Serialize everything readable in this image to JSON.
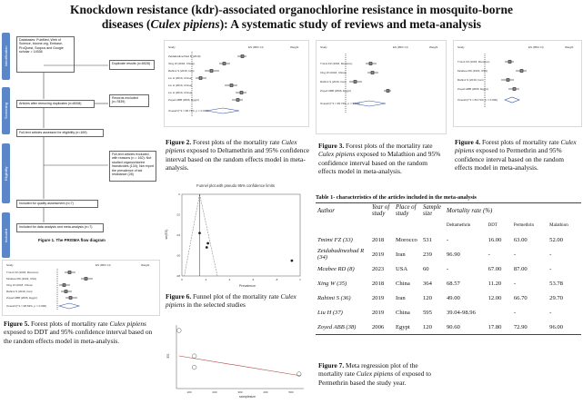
{
  "title_line1": "Knockdown resistance (kdr)-associated organochlorine resistance in mosquito-borne",
  "title_line2_pre": "diseases (",
  "title_line2_species": "Culex pipiens",
  "title_line2_post": "): A systematic study of reviews and meta-analysis",
  "prisma": {
    "phases": [
      "Identification",
      "Screening",
      "Eligibility",
      "Included"
    ],
    "boxes": {
      "databases": "Databases: PubMed, Web of Science, bioone.org, Embase, ProQuest, Scopus and Google scholar = 14536",
      "duplicates": "Duplicate results (n=6528)",
      "after_dup": "Articles after removing duplicates (n=8008)",
      "records_excluded": "Records excluded (n=7839)",
      "fulltext": "Full-text articles assessed for eligibility (n=169)",
      "fulltext_excluded": "Full-text articles excluded, with reasons (n = 162): Not studied organochlorine insecticides (134); Not report the prevalence of kdr resistance (28)",
      "quality": "Included for quality assessment (n=7)",
      "meta": "Included for data analysis and meta-analysis (n=7)"
    },
    "caption": "Figure 1. The PRISMA flow diagram"
  },
  "fig2_caption": {
    "label": "Figure 2.",
    "text_a": " Forest plots of the mortality rate ",
    "species": "Culex pipiens",
    "text_b": " exposed to Deltamethrin and 95% confidence interval based on the random effects model in meta-analysis."
  },
  "fig3_caption": {
    "label": "Figure 3.",
    "text_a": " Forest plots of the mortality rate ",
    "species": "Culex pipiens",
    "text_b": " exposed to Malathion and 95% confidence interval based on the random effects model in meta-analysis."
  },
  "fig4_caption": {
    "label": "Figure 4.",
    "text_a": " Forest plots of mortality rate ",
    "species": "Culex pipiens",
    "text_b": " exposed to Permethrin and 95% confidence interval based on the random effects model in meta-analysis."
  },
  "fig5_caption": {
    "label": "Figure 5.",
    "text_a": " Forest plots of mortality rate ",
    "species": "Culex pipiens",
    "text_b": " exposed to DDT and 95% confidence interval based on the random effects model in meta-analysis."
  },
  "fig6_caption": {
    "label": "Figure 6.",
    "text_a": " Funnel plot of the mortality rate ",
    "species": "Culex pipiens",
    "text_b": " in the selected studies"
  },
  "fig7_caption": {
    "label": "Figure 7.",
    "text_a": " Meta regression plot of the mortality rate ",
    "species": "Culex pipiens",
    "text_b": " of exposed to Permethrin based the study year."
  },
  "funnel": {
    "title": "Funnel plot with pseudo 95% confidence limits",
    "xlabel": "Prevalence",
    "ylabel": "se(ES)"
  },
  "metareg": {
    "xlabel": "samplesize",
    "ylabel": "ES"
  },
  "table1": {
    "title": "Table 1- characteristics of the articles included in the meta-analysis",
    "headers": {
      "author": "Author",
      "year": "Year of study",
      "place": "Place of study",
      "sample": "Sample size",
      "mortality": "Mortality rate (%)"
    },
    "subheaders": [
      "Deltamethrin",
      "DDT",
      "Permethrin",
      "Malathion"
    ],
    "rows": [
      {
        "author": "Tmimi FZ (33)",
        "year": "2018",
        "place": "Morocco",
        "sample": "531",
        "delta": "-",
        "ddt": "16.00",
        "perm": "63.00",
        "mala": "52.00"
      },
      {
        "author": "Zeidabadinezhad R (34)",
        "year": "2019",
        "place": "Iran",
        "sample": "239",
        "delta": "96.90",
        "ddt": "-",
        "perm": "-",
        "mala": "-"
      },
      {
        "author": "Mcabee RD (8)",
        "year": "2023",
        "place": "USA",
        "sample": "60",
        "delta": "-",
        "ddt": "67.00",
        "perm": "87.00",
        "mala": "-"
      },
      {
        "author": "Xing W (35)",
        "year": "2018",
        "place": "China",
        "sample": "364",
        "delta": "68.57",
        "ddt": "11.20",
        "perm": "-",
        "mala": "53.78"
      },
      {
        "author": "Rahimi S (36)",
        "year": "2019",
        "place": "Iran",
        "sample": "120",
        "delta": "49.00",
        "ddt": "12.00",
        "perm": "66.70",
        "mala": "29.70"
      },
      {
        "author": "Liu H (37)",
        "year": "2019",
        "place": "China",
        "sample": "595",
        "delta": "39.04-98.96",
        "ddt": "-",
        "perm": "-",
        "mala": "-"
      },
      {
        "author": "Zoyed ABB (38)",
        "year": "2006",
        "place": "Egypt",
        "sample": "120",
        "delta": "90.60",
        "ddt": "17.80",
        "perm": "72.90",
        "mala": "96.00"
      }
    ]
  },
  "chart_data": [
    {
      "type": "scatter",
      "title": "Funnel plot with pseudo 95% confidence limits",
      "xlabel": "Prevalence",
      "ylabel": "se(ES)",
      "y_reversed": true,
      "x_ticks": [
        "0",
        ".2",
        ".4",
        ".6",
        ".8",
        "1"
      ],
      "y_ticks": [
        "0",
        ".02",
        ".04",
        ".06",
        ".08"
      ],
      "xlim": [
        0,
        1
      ],
      "ylim": [
        0,
        0.08
      ],
      "points": [
        {
          "x": 0.15,
          "y": 0.038
        },
        {
          "x": 0.22,
          "y": 0.048
        },
        {
          "x": 0.21,
          "y": 0.052
        },
        {
          "x": 0.93,
          "y": 0.065
        }
      ]
    },
    {
      "type": "scatter",
      "title": "",
      "xlabel": "samplesize",
      "ylabel": "ES",
      "x_ticks": [
        "100",
        "200",
        "300",
        "400",
        "500"
      ],
      "xlim": [
        50,
        550
      ],
      "ylim": [
        55,
        90
      ],
      "points": [
        {
          "x": 120,
          "y": 66.7
        },
        {
          "x": 120,
          "y": 72.9
        },
        {
          "x": 531,
          "y": 63.0
        },
        {
          "x": 60,
          "y": 87.0
        }
      ]
    }
  ]
}
